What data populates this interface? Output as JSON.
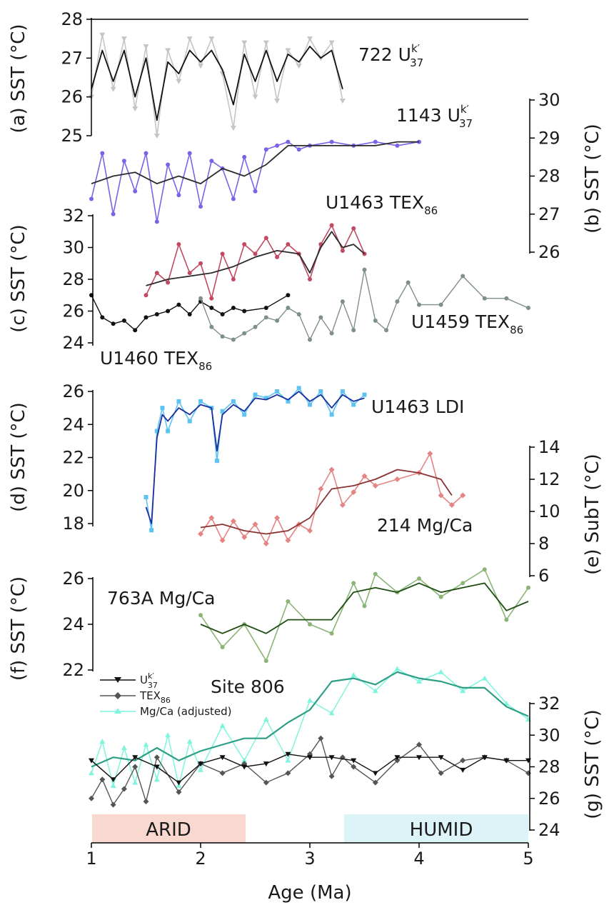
{
  "xaxis": {
    "label": "Age (Ma)",
    "ticks": [
      "1",
      "2",
      "3",
      "4",
      "5"
    ],
    "range": [
      1,
      5
    ]
  },
  "colors": {
    "uk37_raw": "#c2c6c5",
    "uk37_smooth": "#111111",
    "u1143_raw": "#7d62e8",
    "u1143_smooth": "#2b2b2b",
    "tex_u1463_raw": "#c24a62",
    "tex_u1463_smooth": "#2a2a2a",
    "tex_u1460": "#111111",
    "tex_u1459": "#7f8f8e",
    "ldi_raw": "#5cc3f2",
    "ldi_smooth": "#1b2f9c",
    "mg214_raw": "#e48585",
    "mg214_smooth": "#8a3232",
    "mg763_raw": "#8ab576",
    "mg763_smooth": "#1e4e12",
    "site806_mg_raw": "#7ff5dd",
    "site806_mg_smooth": "#2e9f86",
    "site806_tex": "#555555",
    "site806_uk": "#111111",
    "arid": "#f9d8cf",
    "humid": "#dcf3f8"
  },
  "panels": {
    "a": {
      "axis_label": "(a) SST (°C)",
      "ticks": [
        "25",
        "26",
        "27",
        "28"
      ],
      "site_text": "722 U",
      "sup": "k′",
      "sub": "37"
    },
    "b": {
      "axis_label": "(b) SST (°C)",
      "ticks": [
        "26",
        "27",
        "28",
        "29",
        "30"
      ],
      "site_text": "1143 U",
      "sup": "k′",
      "sub": "37"
    },
    "c": {
      "axis_label": "(c) SST (°C)",
      "ticks": [
        "24",
        "26",
        "28",
        "30",
        "32"
      ],
      "site_u1463": "U1463 TEX",
      "site_u1459": "U1459 TEX",
      "site_u1460": "U1460 TEX",
      "sub": "86"
    },
    "d": {
      "axis_label": "(d) SST (°C)",
      "ticks": [
        "18",
        "20",
        "22",
        "24",
        "26"
      ],
      "site_text": "U1463 LDI"
    },
    "e": {
      "axis_label": "(e) SubT (°C)",
      "ticks": [
        "6",
        "8",
        "10",
        "12",
        "14"
      ],
      "site_text": "214 Mg/Ca"
    },
    "f": {
      "axis_label": "(f) SST (°C)",
      "ticks": [
        "22",
        "24",
        "26"
      ],
      "site_text": "763A Mg/Ca"
    },
    "g": {
      "axis_label": "(g) SST (°C)",
      "ticks": [
        "24",
        "26",
        "28",
        "30",
        "32"
      ],
      "site_text": "Site 806"
    }
  },
  "legend": {
    "uk": "U",
    "uk_sup": "k′",
    "uk_sub": "37",
    "tex": "TEX",
    "tex_sub": "86",
    "mg": "Mg/Ca (adjusted)"
  },
  "bands": {
    "arid": "ARID",
    "humid": "HUMID"
  },
  "chart_data": [
    {
      "type": "line",
      "panel": "a",
      "ylim": [
        24.8,
        28
      ],
      "series": [
        {
          "style": "raw",
          "x": [
            1.0,
            1.1,
            1.2,
            1.3,
            1.4,
            1.5,
            1.6,
            1.7,
            1.8,
            1.9,
            2.0,
            2.1,
            2.2,
            2.3,
            2.4,
            2.5,
            2.6,
            2.7,
            2.8,
            2.9,
            3.0,
            3.1,
            3.2,
            3.3
          ],
          "y": [
            26.0,
            27.6,
            26.2,
            27.5,
            25.7,
            27.3,
            25.0,
            27.2,
            26.4,
            27.5,
            26.8,
            27.5,
            26.6,
            25.2,
            27.4,
            26.0,
            27.4,
            25.9,
            27.2,
            26.8,
            27.5,
            27.0,
            27.4,
            25.9
          ]
        },
        {
          "style": "smooth",
          "x": [
            1.0,
            1.1,
            1.2,
            1.3,
            1.4,
            1.5,
            1.6,
            1.7,
            1.8,
            1.9,
            2.0,
            2.1,
            2.2,
            2.3,
            2.4,
            2.5,
            2.6,
            2.7,
            2.8,
            2.9,
            3.0,
            3.1,
            3.2,
            3.3
          ],
          "y": [
            26.2,
            27.2,
            26.4,
            27.2,
            26.0,
            27.0,
            25.4,
            26.9,
            26.6,
            27.2,
            26.9,
            27.2,
            26.7,
            25.8,
            27.1,
            26.4,
            27.2,
            26.4,
            27.1,
            26.9,
            27.3,
            27.0,
            27.2,
            26.2
          ]
        }
      ]
    },
    {
      "type": "line",
      "panel": "b",
      "ylim": [
        26,
        30
      ],
      "series": [
        {
          "style": "raw",
          "x": [
            1.0,
            1.1,
            1.2,
            1.3,
            1.4,
            1.5,
            1.6,
            1.7,
            1.8,
            1.9,
            2.0,
            2.1,
            2.2,
            2.3,
            2.4,
            2.5,
            2.6,
            2.7,
            2.8,
            2.9,
            3.0,
            3.2,
            3.4,
            3.6,
            3.8,
            4.0
          ],
          "y": [
            27.4,
            28.6,
            27.0,
            28.4,
            27.6,
            28.6,
            26.8,
            28.3,
            27.5,
            28.6,
            27.2,
            28.4,
            28.2,
            27.4,
            28.5,
            27.6,
            28.7,
            28.8,
            28.9,
            28.7,
            28.8,
            28.9,
            28.8,
            28.9,
            28.8,
            28.9
          ]
        },
        {
          "style": "smooth",
          "x": [
            1.0,
            1.2,
            1.4,
            1.6,
            1.8,
            2.0,
            2.2,
            2.4,
            2.6,
            2.8,
            3.0,
            3.2,
            3.4,
            3.6,
            3.8,
            4.0
          ],
          "y": [
            27.8,
            28.0,
            28.1,
            27.8,
            28.0,
            27.8,
            28.2,
            28.0,
            28.3,
            28.8,
            28.8,
            28.8,
            28.8,
            28.8,
            28.9,
            28.9
          ]
        }
      ]
    },
    {
      "type": "line",
      "panel": "c",
      "ylim": [
        24,
        32
      ],
      "series": [
        {
          "name": "U1463 TEX86",
          "style": "raw",
          "x": [
            1.5,
            1.6,
            1.7,
            1.8,
            1.9,
            2.0,
            2.1,
            2.2,
            2.3,
            2.4,
            2.5,
            2.6,
            2.7,
            2.8,
            2.9,
            3.0,
            3.1,
            3.2,
            3.3,
            3.4,
            3.5
          ],
          "y": [
            27.0,
            28.4,
            27.8,
            30.2,
            28.4,
            29.0,
            26.8,
            29.6,
            28.0,
            30.2,
            29.6,
            30.6,
            29.4,
            30.2,
            29.6,
            28.0,
            30.2,
            31.4,
            29.8,
            31.2,
            29.6
          ]
        },
        {
          "name": "U1463 TEX86",
          "style": "smooth",
          "x": [
            1.5,
            1.7,
            1.9,
            2.1,
            2.3,
            2.5,
            2.7,
            2.9,
            3.0,
            3.1,
            3.2,
            3.3,
            3.4,
            3.5
          ],
          "y": [
            27.6,
            28.0,
            28.2,
            28.4,
            28.8,
            29.4,
            29.8,
            29.6,
            28.4,
            30.0,
            31.0,
            30.0,
            30.2,
            29.6
          ]
        },
        {
          "name": "U1460 TEX86",
          "style": "line",
          "x": [
            1.0,
            1.1,
            1.2,
            1.3,
            1.4,
            1.5,
            1.6,
            1.7,
            1.8,
            1.9,
            2.0,
            2.1,
            2.2,
            2.3,
            2.4,
            2.6,
            2.8
          ],
          "y": [
            27.0,
            25.6,
            25.2,
            25.4,
            24.8,
            25.6,
            25.8,
            26.0,
            26.4,
            25.8,
            26.6,
            26.2,
            25.8,
            26.2,
            26.0,
            26.2,
            27.0
          ]
        },
        {
          "name": "U1459 TEX86",
          "style": "line",
          "x": [
            2.0,
            2.1,
            2.2,
            2.3,
            2.4,
            2.5,
            2.6,
            2.7,
            2.8,
            2.9,
            3.0,
            3.1,
            3.2,
            3.3,
            3.4,
            3.5,
            3.6,
            3.7,
            3.8,
            3.9,
            4.0,
            4.2,
            4.4,
            4.6,
            4.8,
            5.0
          ],
          "y": [
            26.8,
            25.0,
            24.4,
            24.2,
            24.6,
            25.0,
            25.6,
            25.4,
            26.2,
            25.8,
            24.2,
            25.6,
            24.6,
            26.6,
            24.8,
            28.6,
            25.4,
            24.8,
            26.6,
            27.8,
            26.4,
            26.4,
            28.2,
            26.8,
            26.8,
            26.2
          ]
        }
      ]
    },
    {
      "type": "line",
      "panel": "d",
      "ylim": [
        18,
        26
      ],
      "series": [
        {
          "style": "raw",
          "x": [
            1.5,
            1.55,
            1.6,
            1.65,
            1.7,
            1.8,
            1.9,
            2.0,
            2.1,
            2.15,
            2.2,
            2.3,
            2.4,
            2.5,
            2.6,
            2.7,
            2.8,
            2.9,
            3.0,
            3.1,
            3.2,
            3.3,
            3.4,
            3.5
          ],
          "y": [
            19.6,
            17.6,
            23.6,
            25.0,
            23.6,
            25.4,
            24.2,
            25.4,
            25.0,
            21.8,
            24.8,
            25.4,
            24.6,
            25.8,
            25.6,
            26.0,
            25.4,
            26.2,
            25.2,
            26.0,
            24.6,
            26.0,
            25.2,
            25.8
          ]
        },
        {
          "style": "smooth",
          "x": [
            1.5,
            1.55,
            1.6,
            1.65,
            1.7,
            1.8,
            1.9,
            2.0,
            2.1,
            2.15,
            2.2,
            2.3,
            2.4,
            2.5,
            2.6,
            2.7,
            2.8,
            2.9,
            3.0,
            3.1,
            3.2,
            3.3,
            3.4,
            3.5
          ],
          "y": [
            19.0,
            18.0,
            23.2,
            24.6,
            24.2,
            25.0,
            24.6,
            25.2,
            25.0,
            22.4,
            24.6,
            25.2,
            24.8,
            25.6,
            25.5,
            25.8,
            25.5,
            26.0,
            25.4,
            25.8,
            25.0,
            25.8,
            25.4,
            25.6
          ]
        }
      ]
    },
    {
      "type": "line",
      "panel": "e",
      "ylim": [
        6,
        14
      ],
      "series": [
        {
          "style": "raw",
          "x": [
            2.0,
            2.1,
            2.2,
            2.3,
            2.4,
            2.5,
            2.6,
            2.7,
            2.8,
            2.9,
            3.0,
            3.1,
            3.2,
            3.3,
            3.4,
            3.5,
            3.6,
            3.8,
            4.0,
            4.1,
            4.2,
            4.3,
            4.4
          ],
          "y": [
            8.6,
            9.6,
            8.2,
            9.4,
            8.4,
            9.2,
            8.0,
            9.6,
            8.2,
            9.2,
            8.8,
            11.4,
            12.6,
            10.4,
            11.2,
            12.2,
            11.6,
            12.0,
            12.4,
            13.6,
            11.0,
            10.4,
            11.0
          ]
        },
        {
          "style": "smooth",
          "x": [
            2.0,
            2.2,
            2.4,
            2.6,
            2.8,
            3.0,
            3.2,
            3.4,
            3.6,
            3.8,
            4.0,
            4.2,
            4.3
          ],
          "y": [
            9.0,
            9.2,
            8.8,
            8.6,
            8.8,
            9.6,
            11.4,
            11.6,
            12.0,
            12.6,
            12.4,
            12.0,
            11.0
          ]
        }
      ]
    },
    {
      "type": "line",
      "panel": "f",
      "ylim": [
        22,
        26
      ],
      "series": [
        {
          "style": "raw",
          "x": [
            2.0,
            2.2,
            2.4,
            2.6,
            2.8,
            3.0,
            3.2,
            3.4,
            3.5,
            3.6,
            3.8,
            4.0,
            4.2,
            4.4,
            4.6,
            4.8,
            5.0
          ],
          "y": [
            24.4,
            23.0,
            24.0,
            22.4,
            25.0,
            24.0,
            23.6,
            25.8,
            24.8,
            26.2,
            25.4,
            26.0,
            25.2,
            25.8,
            26.4,
            24.2,
            25.6
          ]
        },
        {
          "style": "smooth",
          "x": [
            2.0,
            2.2,
            2.4,
            2.6,
            2.8,
            3.0,
            3.2,
            3.4,
            3.6,
            3.8,
            4.0,
            4.2,
            4.4,
            4.6,
            4.8,
            5.0
          ],
          "y": [
            24.0,
            23.6,
            24.0,
            23.6,
            24.2,
            24.2,
            24.2,
            25.4,
            25.6,
            25.4,
            25.8,
            25.4,
            25.6,
            25.8,
            24.6,
            25.0
          ]
        }
      ]
    },
    {
      "type": "line",
      "panel": "g",
      "ylim": [
        24,
        34
      ],
      "series": [
        {
          "name": "Mg/Ca (adjusted)",
          "style": "raw",
          "x": [
            1.0,
            1.1,
            1.2,
            1.3,
            1.4,
            1.5,
            1.6,
            1.7,
            1.8,
            1.9,
            2.0,
            2.2,
            2.4,
            2.6,
            2.8,
            3.0,
            3.2,
            3.4,
            3.6,
            3.8,
            4.0,
            4.2,
            4.4,
            4.6,
            4.8,
            5.0
          ],
          "y": [
            27.6,
            29.6,
            26.8,
            29.2,
            27.0,
            29.4,
            27.2,
            30.0,
            26.8,
            29.6,
            27.8,
            30.6,
            28.4,
            31.0,
            28.4,
            32.2,
            31.4,
            33.8,
            32.8,
            34.2,
            33.4,
            34.0,
            32.8,
            33.6,
            32.0,
            31.0
          ]
        },
        {
          "name": "Mg/Ca (adjusted)",
          "style": "smooth",
          "x": [
            1.0,
            1.2,
            1.4,
            1.6,
            1.8,
            2.0,
            2.2,
            2.4,
            2.6,
            2.8,
            3.0,
            3.2,
            3.4,
            3.6,
            3.8,
            4.0,
            4.2,
            4.4,
            4.6,
            4.8,
            5.0
          ],
          "y": [
            28.0,
            28.6,
            28.4,
            29.2,
            28.4,
            29.0,
            29.4,
            29.8,
            29.8,
            30.8,
            31.6,
            33.4,
            33.6,
            33.2,
            34.0,
            33.6,
            33.4,
            33.0,
            33.0,
            31.8,
            31.2
          ]
        },
        {
          "name": "TEX86",
          "style": "line",
          "x": [
            1.0,
            1.1,
            1.2,
            1.3,
            1.4,
            1.5,
            1.6,
            1.8,
            2.0,
            2.2,
            2.4,
            2.6,
            2.8,
            3.0,
            3.1,
            3.2,
            3.3,
            3.4,
            3.6,
            3.8,
            4.0,
            4.2,
            4.4,
            4.6,
            4.8,
            5.0
          ],
          "y": [
            26.0,
            27.2,
            25.6,
            26.6,
            28.0,
            25.8,
            28.6,
            26.4,
            28.2,
            27.6,
            28.2,
            27.0,
            27.6,
            28.8,
            29.8,
            27.4,
            28.6,
            28.0,
            27.0,
            28.4,
            29.4,
            27.6,
            28.4,
            28.6,
            28.4,
            27.6
          ]
        },
        {
          "name": "Uk37",
          "style": "line",
          "x": [
            1.0,
            1.2,
            1.4,
            1.6,
            1.8,
            2.0,
            2.2,
            2.4,
            2.6,
            2.8,
            3.0,
            3.2,
            3.4,
            3.6,
            3.8,
            4.0,
            4.2,
            4.4,
            4.6,
            4.8,
            5.0
          ],
          "y": [
            28.4,
            27.2,
            28.6,
            28.0,
            27.0,
            28.2,
            28.6,
            28.0,
            28.2,
            28.8,
            28.6,
            28.6,
            28.4,
            27.6,
            28.6,
            28.6,
            28.6,
            27.8,
            28.6,
            28.4,
            28.4
          ]
        }
      ]
    }
  ]
}
